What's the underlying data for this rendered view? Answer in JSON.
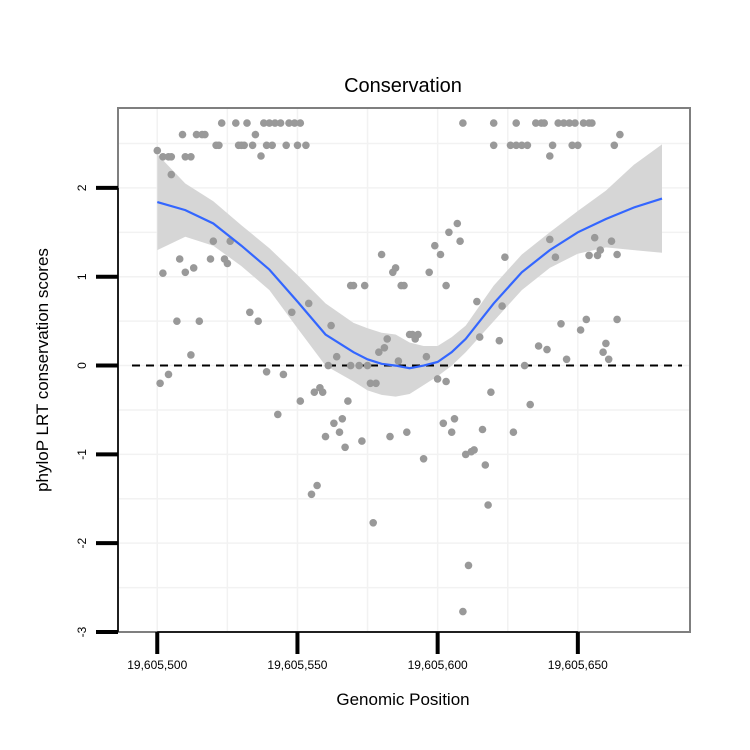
{
  "chart_data": {
    "type": "scatter",
    "title": "Conservation",
    "xlabel": "Genomic Position",
    "ylabel": "phyloP LRT conservation scores",
    "xlim": [
      19605486,
      19605690
    ],
    "ylim": [
      -3,
      2.9
    ],
    "x_ticks": [
      19605500,
      19605550,
      19605600,
      19605650
    ],
    "x_tick_labels": [
      "19,605,500",
      "19,605,550",
      "19,605,600",
      "19,605,650"
    ],
    "y_ticks": [
      -3,
      -2,
      -1,
      0,
      1,
      2
    ],
    "y_tick_labels": [
      "-3",
      "-2",
      "-1",
      "0",
      "1",
      "2"
    ],
    "reference_line": {
      "y": 0,
      "style": "dashed"
    },
    "colors": {
      "points": "#999999",
      "smooth": "#3366ff",
      "ribbon": "#d4d4d4",
      "grid": "#f2f2f2",
      "frame": "#7f7f7f"
    },
    "points": [
      [
        19605500,
        2.42
      ],
      [
        19605501,
        -0.2
      ],
      [
        19605502,
        1.04
      ],
      [
        19605502,
        2.35
      ],
      [
        19605504,
        -0.1
      ],
      [
        19605504,
        2.35
      ],
      [
        19605505,
        2.15
      ],
      [
        19605505,
        2.35
      ],
      [
        19605507,
        0.5
      ],
      [
        19605508,
        1.2
      ],
      [
        19605509,
        2.6
      ],
      [
        19605510,
        1.05
      ],
      [
        19605510,
        2.35
      ],
      [
        19605512,
        0.12
      ],
      [
        19605512,
        2.35
      ],
      [
        19605513,
        1.1
      ],
      [
        19605514,
        2.6
      ],
      [
        19605515,
        0.5
      ],
      [
        19605516,
        2.6
      ],
      [
        19605517,
        2.6
      ],
      [
        19605519,
        1.2
      ],
      [
        19605520,
        1.4
      ],
      [
        19605521,
        2.48
      ],
      [
        19605522,
        2.48
      ],
      [
        19605523,
        2.73
      ],
      [
        19605524,
        1.2
      ],
      [
        19605525,
        1.15
      ],
      [
        19605526,
        1.4
      ],
      [
        19605528,
        2.73
      ],
      [
        19605529,
        2.48
      ],
      [
        19605530,
        2.48
      ],
      [
        19605531,
        2.48
      ],
      [
        19605532,
        2.73
      ],
      [
        19605533,
        0.6
      ],
      [
        19605534,
        2.48
      ],
      [
        19605535,
        2.6
      ],
      [
        19605536,
        0.5
      ],
      [
        19605537,
        2.36
      ],
      [
        19605538,
        2.73
      ],
      [
        19605539,
        -0.07
      ],
      [
        19605539,
        2.48
      ],
      [
        19605540,
        2.73
      ],
      [
        19605541,
        2.48
      ],
      [
        19605542,
        2.73
      ],
      [
        19605543,
        -0.55
      ],
      [
        19605544,
        2.73
      ],
      [
        19605545,
        -0.1
      ],
      [
        19605546,
        2.48
      ],
      [
        19605547,
        2.73
      ],
      [
        19605548,
        0.6
      ],
      [
        19605549,
        2.73
      ],
      [
        19605550,
        2.48
      ],
      [
        19605551,
        -0.4
      ],
      [
        19605551,
        2.73
      ],
      [
        19605553,
        2.48
      ],
      [
        19605554,
        0.7
      ],
      [
        19605555,
        -1.45
      ],
      [
        19605556,
        -0.3
      ],
      [
        19605557,
        -1.35
      ],
      [
        19605558,
        -0.25
      ],
      [
        19605559,
        -0.3
      ],
      [
        19605560,
        -0.8
      ],
      [
        19605561,
        0.0
      ],
      [
        19605562,
        0.45
      ],
      [
        19605563,
        -0.65
      ],
      [
        19605564,
        0.1
      ],
      [
        19605565,
        -0.75
      ],
      [
        19605566,
        -0.6
      ],
      [
        19605567,
        -0.92
      ],
      [
        19605568,
        -0.4
      ],
      [
        19605569,
        0.0
      ],
      [
        19605569,
        0.9
      ],
      [
        19605570,
        0.9
      ],
      [
        19605572,
        0.0
      ],
      [
        19605573,
        -0.85
      ],
      [
        19605574,
        0.9
      ],
      [
        19605575,
        0.0
      ],
      [
        19605576,
        -0.2
      ],
      [
        19605577,
        -1.77
      ],
      [
        19605578,
        -0.2
      ],
      [
        19605579,
        0.15
      ],
      [
        19605580,
        1.25
      ],
      [
        19605581,
        0.2
      ],
      [
        19605582,
        0.3
      ],
      [
        19605583,
        -0.8
      ],
      [
        19605584,
        1.05
      ],
      [
        19605585,
        1.1
      ],
      [
        19605586,
        0.05
      ],
      [
        19605587,
        0.9
      ],
      [
        19605588,
        0.9
      ],
      [
        19605589,
        -0.75
      ],
      [
        19605590,
        0.35
      ],
      [
        19605591,
        0.35
      ],
      [
        19605592,
        0.3
      ],
      [
        19605593,
        0.35
      ],
      [
        19605595,
        -1.05
      ],
      [
        19605596,
        0.1
      ],
      [
        19605597,
        1.05
      ],
      [
        19605599,
        1.35
      ],
      [
        19605600,
        -0.15
      ],
      [
        19605601,
        1.25
      ],
      [
        19605602,
        -0.65
      ],
      [
        19605603,
        0.9
      ],
      [
        19605603,
        -0.18
      ],
      [
        19605604,
        1.5
      ],
      [
        19605605,
        -0.75
      ],
      [
        19605606,
        -0.6
      ],
      [
        19605607,
        1.6
      ],
      [
        19605608,
        1.4
      ],
      [
        19605609,
        -2.77
      ],
      [
        19605609,
        2.73
      ],
      [
        19605610,
        -1.0
      ],
      [
        19605611,
        -2.25
      ],
      [
        19605612,
        -0.97
      ],
      [
        19605613,
        -0.95
      ],
      [
        19605614,
        0.72
      ],
      [
        19605615,
        0.32
      ],
      [
        19605616,
        -0.72
      ],
      [
        19605617,
        -1.12
      ],
      [
        19605618,
        -1.57
      ],
      [
        19605619,
        -0.3
      ],
      [
        19605620,
        2.73
      ],
      [
        19605620,
        2.48
      ],
      [
        19605622,
        0.28
      ],
      [
        19605623,
        0.67
      ],
      [
        19605624,
        1.22
      ],
      [
        19605626,
        2.48
      ],
      [
        19605627,
        -0.75
      ],
      [
        19605628,
        2.73
      ],
      [
        19605628,
        2.48
      ],
      [
        19605630,
        2.48
      ],
      [
        19605631,
        0.0
      ],
      [
        19605632,
        2.48
      ],
      [
        19605633,
        -0.44
      ],
      [
        19605635,
        2.73
      ],
      [
        19605636,
        0.22
      ],
      [
        19605637,
        2.73
      ],
      [
        19605638,
        2.73
      ],
      [
        19605639,
        0.18
      ],
      [
        19605640,
        1.42
      ],
      [
        19605640,
        2.36
      ],
      [
        19605641,
        2.48
      ],
      [
        19605642,
        1.22
      ],
      [
        19605643,
        2.73
      ],
      [
        19605644,
        0.47
      ],
      [
        19605645,
        2.73
      ],
      [
        19605646,
        0.07
      ],
      [
        19605647,
        2.73
      ],
      [
        19605648,
        2.48
      ],
      [
        19605649,
        2.73
      ],
      [
        19605650,
        2.48
      ],
      [
        19605651,
        0.4
      ],
      [
        19605652,
        2.73
      ],
      [
        19605653,
        0.52
      ],
      [
        19605654,
        1.24
      ],
      [
        19605654,
        2.73
      ],
      [
        19605655,
        2.73
      ],
      [
        19605656,
        1.44
      ],
      [
        19605657,
        1.24
      ],
      [
        19605658,
        1.3
      ],
      [
        19605659,
        0.15
      ],
      [
        19605660,
        0.25
      ],
      [
        19605661,
        0.07
      ],
      [
        19605662,
        1.4
      ],
      [
        19605663,
        2.48
      ],
      [
        19605664,
        0.52
      ],
      [
        19605664,
        1.25
      ],
      [
        19605665,
        2.6
      ]
    ],
    "smooth": {
      "x": [
        19605500,
        19605510,
        19605520,
        19605530,
        19605540,
        19605550,
        19605560,
        19605570,
        19605575,
        19605580,
        19605585,
        19605590,
        19605595,
        19605600,
        19605605,
        19605610,
        19605620,
        19605630,
        19605640,
        19605650,
        19605660,
        19605670,
        19605680
      ],
      "y": [
        1.84,
        1.75,
        1.6,
        1.35,
        1.08,
        0.72,
        0.35,
        0.15,
        0.07,
        0.02,
        0.0,
        -0.03,
        0.0,
        0.04,
        0.15,
        0.3,
        0.7,
        1.05,
        1.3,
        1.5,
        1.65,
        1.78,
        1.88
      ],
      "lower": [
        1.3,
        1.45,
        1.35,
        1.12,
        0.85,
        0.42,
        0.0,
        -0.18,
        -0.28,
        -0.33,
        -0.35,
        -0.32,
        -0.22,
        -0.12,
        0.0,
        0.15,
        0.5,
        0.85,
        1.1,
        1.26,
        1.33,
        1.3,
        1.27
      ],
      "upper": [
        2.38,
        2.05,
        1.85,
        1.58,
        1.32,
        1.02,
        0.7,
        0.48,
        0.42,
        0.37,
        0.35,
        0.26,
        0.22,
        0.22,
        0.32,
        0.45,
        0.9,
        1.25,
        1.5,
        1.74,
        1.97,
        2.26,
        2.49
      ]
    }
  }
}
